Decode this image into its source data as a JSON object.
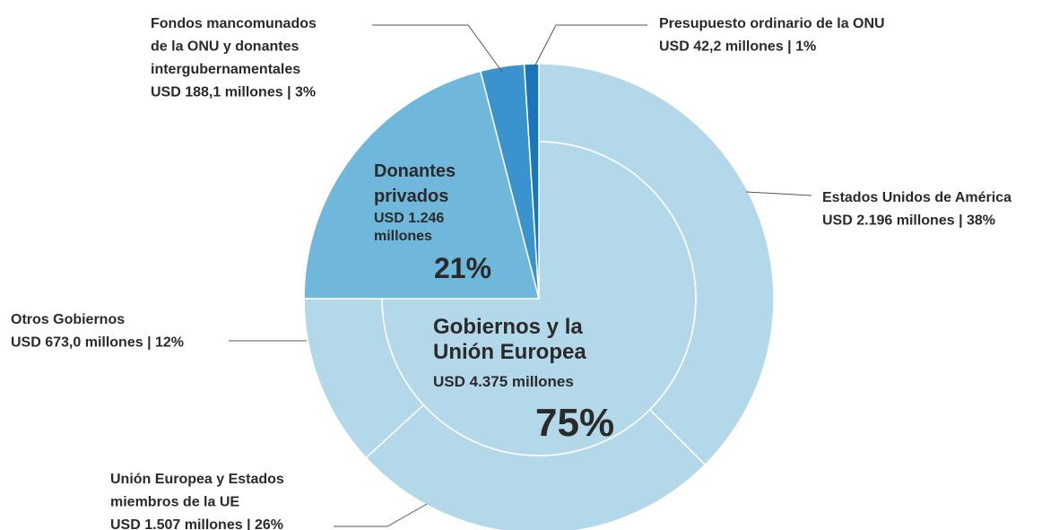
{
  "chart_data": {
    "type": "sunburst",
    "slices": [
      {
        "name_lines": [
          "Gobiernos y la",
          "Unión Europea"
        ],
        "amount_lines": [
          "USD 4.375 millones"
        ],
        "value": 75,
        "value_label": "75%",
        "color": "#b3d8ea",
        "children": [
          {
            "name_lines": [
              "Estados Unidos de América"
            ],
            "label": "USD 2.196 millones | 38%",
            "value": 38
          },
          {
            "name_lines": [
              "Unión Europea y Estados",
              "miembros de la UE"
            ],
            "label": "USD 1.507 millones | 26%",
            "value": 26
          },
          {
            "name_lines": [
              "Otros Gobiernos"
            ],
            "label": "USD 673,0 millones | 12%",
            "value": 12
          }
        ]
      },
      {
        "name_lines": [
          "Donantes",
          "privados"
        ],
        "amount_lines": [
          "USD 1.246",
          "millones"
        ],
        "value": 21,
        "value_label": "21%",
        "color": "#6fb7db"
      },
      {
        "name_lines": [
          "Fondos mancomunados",
          "de la ONU y donantes",
          "intergubernamentales"
        ],
        "label": "USD 188,1 millones | 3%",
        "value": 3,
        "color": "#3a93cc"
      },
      {
        "name_lines": [
          "Presupuesto ordinario de la ONU"
        ],
        "label": "USD 42,2 millones | 1%",
        "value": 1,
        "color": "#1b75bb"
      }
    ]
  }
}
